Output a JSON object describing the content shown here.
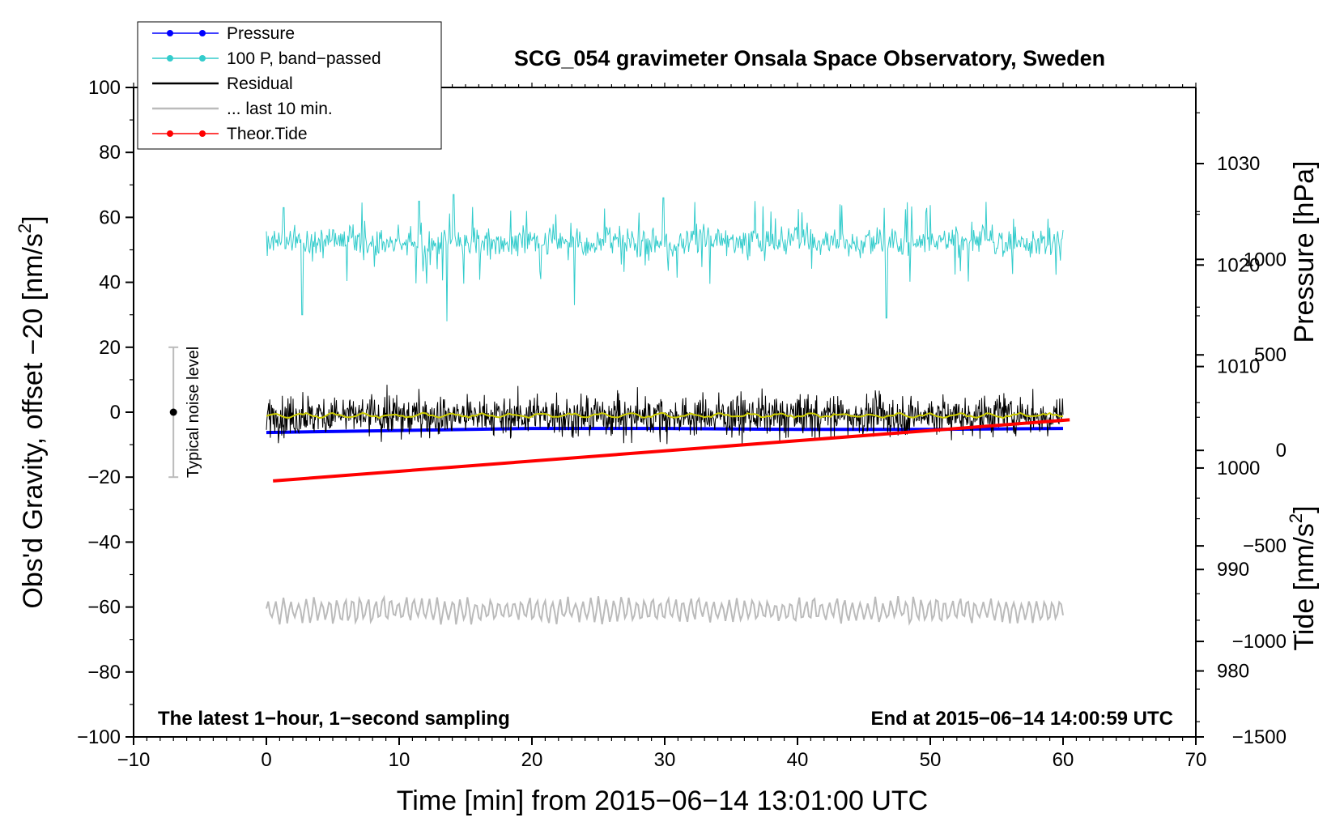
{
  "chart_data": {
    "type": "line",
    "title": "SCG_054 gravimeter Onsala Space Observatory, Sweden",
    "xlabel": "Time [min] from 2015−06−14 13:01:00 UTC",
    "ylabel_left": "Obs'd Gravity, offset −20 [nm/s",
    "ylabel_left_sup": "2",
    "ylabel_left_end": "]",
    "ylabel_right_pressure": "Pressure [hPa]",
    "ylabel_right_tide": "Tide [nm/s",
    "ylabel_right_tide_sup": "2",
    "ylabel_right_tide_end": "]",
    "xlim": [
      -10,
      70
    ],
    "ylim": [
      -100,
      100
    ],
    "x_ticks": [
      {
        "v": -10,
        "label": "−10"
      },
      {
        "v": 0,
        "label": "0"
      },
      {
        "v": 10,
        "label": "10"
      },
      {
        "v": 20,
        "label": "20"
      },
      {
        "v": 30,
        "label": "30"
      },
      {
        "v": 40,
        "label": "40"
      },
      {
        "v": 50,
        "label": "50"
      },
      {
        "v": 60,
        "label": "60"
      },
      {
        "v": 70,
        "label": "70"
      }
    ],
    "y_ticks": [
      {
        "v": 100,
        "label": "100"
      },
      {
        "v": 80,
        "label": "80"
      },
      {
        "v": 60,
        "label": "60"
      },
      {
        "v": 40,
        "label": "40"
      },
      {
        "v": 20,
        "label": "20"
      },
      {
        "v": 0,
        "label": "0"
      },
      {
        "v": -20,
        "label": "−20"
      },
      {
        "v": -40,
        "label": "−40"
      },
      {
        "v": -60,
        "label": "−60"
      },
      {
        "v": -80,
        "label": "−80"
      },
      {
        "v": -100,
        "label": "−100"
      }
    ],
    "pressure_axis": {
      "ylim": [
        973.5,
        1037.5
      ],
      "ticks": [
        {
          "v": 1030,
          "label": "1030"
        },
        {
          "v": 1020,
          "label": "1020"
        },
        {
          "v": 1010,
          "label": "1010"
        },
        {
          "v": 1000,
          "label": "1000"
        },
        {
          "v": 990,
          "label": "990"
        },
        {
          "v": 980,
          "label": "980"
        }
      ]
    },
    "tide_axis": {
      "ylim": [
        -1500,
        1900
      ],
      "ticks": [
        {
          "v": 1000,
          "label": "1000"
        },
        {
          "v": 500,
          "label": "500"
        },
        {
          "v": 0,
          "label": "0"
        },
        {
          "v": -500,
          "label": "−500"
        },
        {
          "v": -1000,
          "label": "−1000"
        },
        {
          "v": -1500,
          "label": "−1500"
        }
      ]
    },
    "series": [
      {
        "name": "Pressure",
        "color": "#0000ff",
        "axis": "pressure",
        "x": [
          0,
          10,
          20,
          30,
          40,
          50,
          60
        ],
        "values": [
          1003.5,
          1003.7,
          1003.9,
          1003.9,
          1003.8,
          1003.8,
          1003.9
        ]
      },
      {
        "name": "100 P, band−passed",
        "color": "#33cccc",
        "axis": "gravity",
        "x_range": [
          0,
          60
        ],
        "center": 52.5,
        "typical_amplitude": 3,
        "max_peaks": [
          {
            "x": 1.3,
            "v": 63
          },
          {
            "x": 2.7,
            "v": 30
          },
          {
            "x": 11.5,
            "v": 65
          },
          {
            "x": 13.6,
            "v": 28
          },
          {
            "x": 14.1,
            "v": 67
          },
          {
            "x": 23.2,
            "v": 33
          },
          {
            "x": 29.9,
            "v": 66
          },
          {
            "x": 43.2,
            "v": 64
          },
          {
            "x": 46.7,
            "v": 29
          }
        ]
      },
      {
        "name": "Residual",
        "color": "#000000",
        "axis": "gravity",
        "x_range": [
          0,
          60
        ],
        "center": -1,
        "typical_amplitude": 3.5
      },
      {
        "name": "... last 10 min.",
        "color": "#bbbbbb",
        "axis": "gravity",
        "x_range": [
          0,
          60
        ],
        "center": -61,
        "typical_amplitude": 3
      },
      {
        "name": "Theor.Tide",
        "color": "#ff0000",
        "axis": "tide",
        "x": [
          0.5,
          60.5
        ],
        "values": [
          -160,
          160
        ]
      }
    ],
    "smoothed_residual": {
      "color": "#cccc00",
      "center": -1
    },
    "noise_bar": {
      "label": "Typical noise level",
      "x": -7,
      "center": 0,
      "half_range": 20
    },
    "annotations": {
      "left": "The latest 1−hour, 1−second sampling",
      "right": "End at 2015−06−14 14:00:59 UTC"
    },
    "legend": {
      "placement": "top-left",
      "items": [
        {
          "label": "Pressure",
          "color": "#0000ff",
          "marker": true
        },
        {
          "label": "100 P, band−passed",
          "color": "#33cccc",
          "marker": true
        },
        {
          "label": "Residual",
          "color": "#000000",
          "marker": false
        },
        {
          "label": "... last 10 min.",
          "color": "#bbbbbb",
          "marker": false
        },
        {
          "label": "Theor.Tide",
          "color": "#ff0000",
          "marker": true
        }
      ]
    }
  }
}
